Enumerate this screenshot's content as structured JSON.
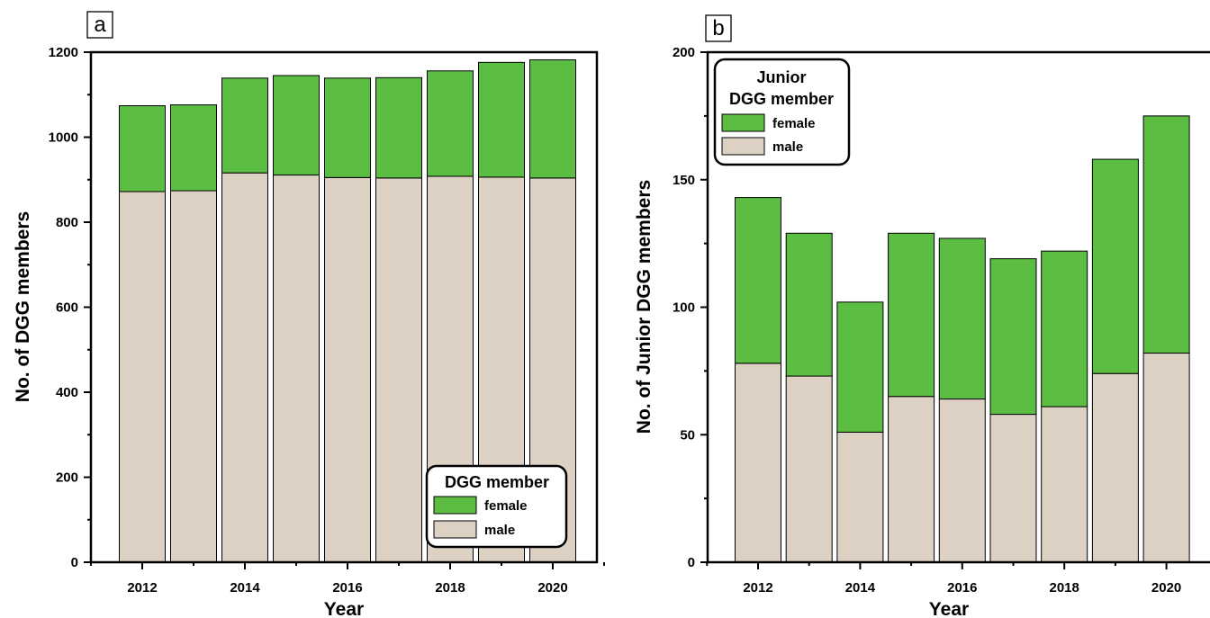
{
  "colors": {
    "female": "#5cbd43",
    "male": "#ddd1c4",
    "outline": "#000000"
  },
  "chart_data": [
    {
      "panel_label": "a",
      "type": "bar",
      "stacked": true,
      "categories": [
        2012,
        2013,
        2014,
        2015,
        2016,
        2017,
        2018,
        2019,
        2020
      ],
      "series": [
        {
          "name": "male",
          "values": [
            872,
            874,
            916,
            911,
            905,
            904,
            908,
            906,
            904
          ]
        },
        {
          "name": "female",
          "values": [
            202,
            202,
            223,
            234,
            234,
            236,
            248,
            270,
            278
          ]
        }
      ],
      "xlabel": "Year",
      "ylabel": "No. of DGG members",
      "ylim": [
        0,
        1200
      ],
      "yticks": [
        0,
        200,
        400,
        600,
        800,
        1000,
        1200
      ],
      "xticks": [
        "2012",
        "2014",
        "2016",
        "2018",
        "2020"
      ],
      "legend": {
        "title": "DGG member",
        "entries": [
          "female",
          "male"
        ],
        "position": "bottom-right"
      }
    },
    {
      "panel_label": "b",
      "type": "bar",
      "stacked": true,
      "categories": [
        2012,
        2013,
        2014,
        2015,
        2016,
        2017,
        2018,
        2019,
        2020
      ],
      "series": [
        {
          "name": "male",
          "values": [
            78,
            73,
            51,
            65,
            64,
            58,
            61,
            74,
            82
          ]
        },
        {
          "name": "female",
          "values": [
            65,
            56,
            51,
            64,
            63,
            61,
            61,
            84,
            93
          ]
        }
      ],
      "xlabel": "Year",
      "ylabel": "No. of Junior DGG members",
      "ylim": [
        0,
        200
      ],
      "yticks": [
        0,
        50,
        100,
        150,
        200
      ],
      "xticks": [
        "2012",
        "2014",
        "2016",
        "2018",
        "2020"
      ],
      "legend": {
        "title_lines": [
          "Junior",
          "DGG member"
        ],
        "entries": [
          "female",
          "male"
        ],
        "position": "top-left"
      }
    }
  ]
}
